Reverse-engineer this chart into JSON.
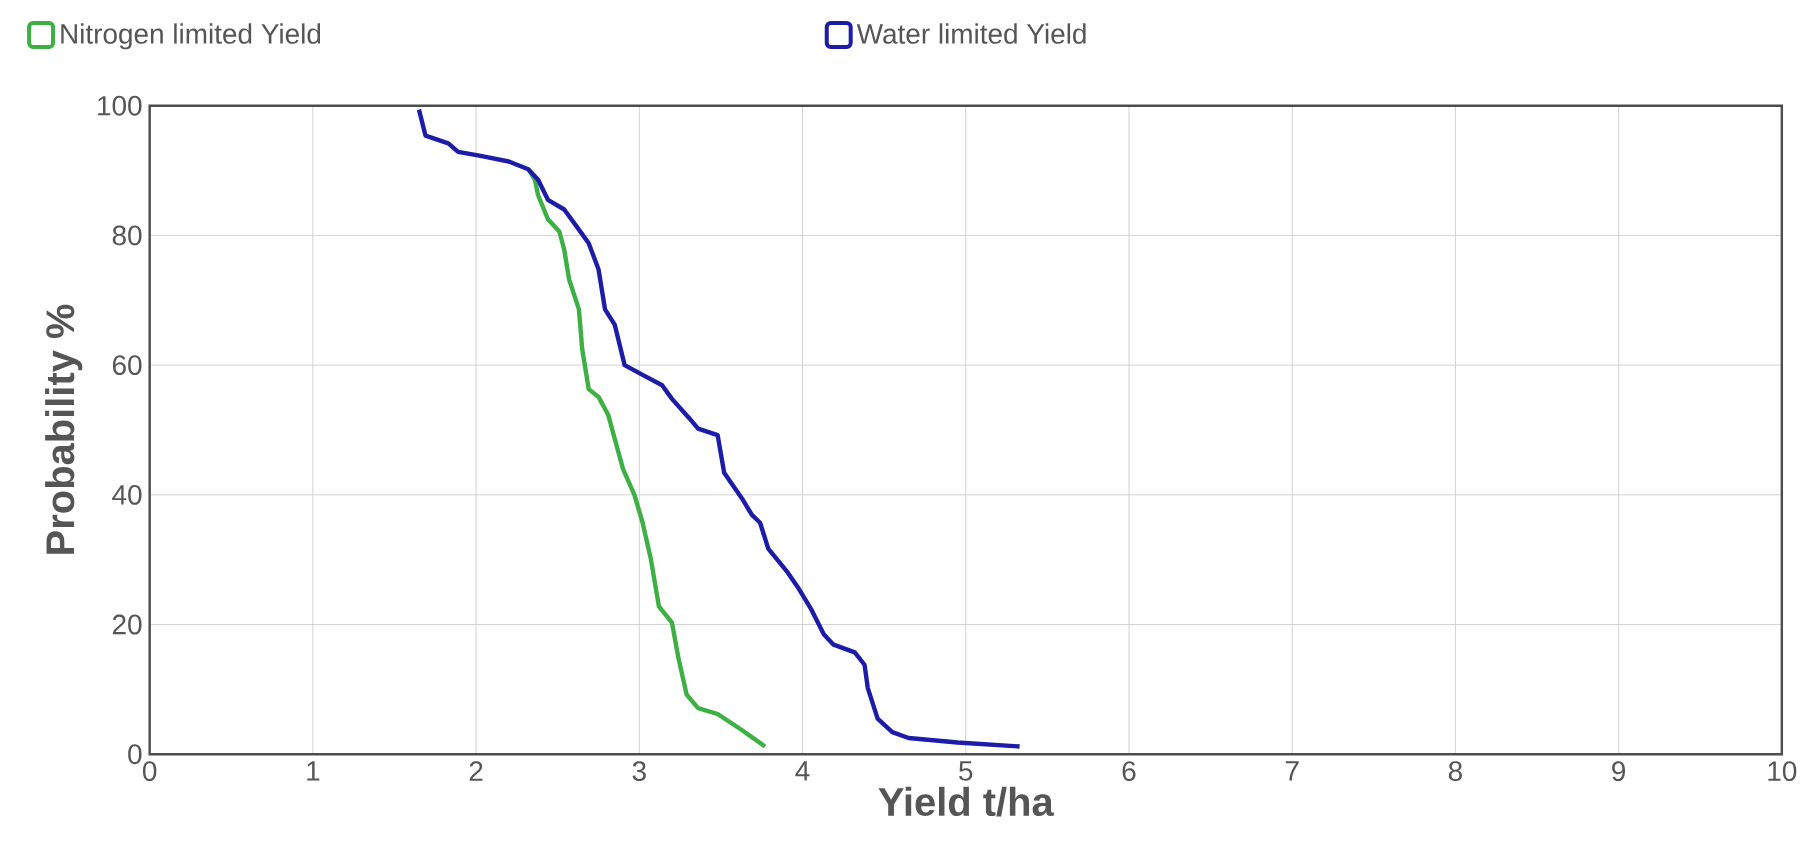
{
  "chart_data": {
    "type": "line",
    "xlabel": "Yield t/ha",
    "ylabel": "Probability %",
    "xlim": [
      0,
      10
    ],
    "xticks": [
      0,
      1,
      2,
      3,
      4,
      5,
      6,
      7,
      8,
      9,
      10
    ],
    "ylim": [
      0,
      100
    ],
    "yticks": [
      0,
      20,
      40,
      60,
      80,
      100
    ],
    "grid": true,
    "legend": "top",
    "series": [
      {
        "name": "Nitrogen limited Yield",
        "color": "#3cb043",
        "x": [
          2.32,
          2.36,
          2.38,
          2.44,
          2.51,
          2.54,
          2.57,
          2.63,
          2.65,
          2.69,
          2.75,
          2.81,
          2.85,
          2.9,
          2.97,
          3.02,
          3.07,
          3.12,
          3.2,
          3.24,
          3.29,
          3.36,
          3.48,
          3.63,
          3.77
        ],
        "values": [
          90.2,
          88.6,
          86.2,
          82.5,
          80.6,
          77.8,
          73.2,
          68.6,
          62.5,
          56.3,
          55.1,
          52.3,
          48.6,
          44,
          40,
          35.7,
          30.2,
          22.8,
          20.3,
          14.8,
          9.2,
          7.1,
          6.2,
          3.7,
          1.2
        ]
      },
      {
        "name": "Water limited Yield",
        "color": "#1c1ca8",
        "x": [
          1.65,
          1.69,
          1.83,
          1.89,
          2.02,
          2.2,
          2.32,
          2.38,
          2.44,
          2.54,
          2.63,
          2.69,
          2.75,
          2.79,
          2.85,
          2.91,
          3.02,
          3.14,
          3.2,
          3.31,
          3.36,
          3.48,
          3.52,
          3.63,
          3.69,
          3.74,
          3.79,
          3.91,
          3.97,
          4.05,
          4.13,
          4.19,
          4.32,
          4.38,
          4.4,
          4.46,
          4.55,
          4.65,
          4.95,
          5.33
        ],
        "values": [
          99.4,
          95.4,
          94.2,
          92.9,
          92.3,
          91.4,
          90.2,
          88.6,
          85.5,
          84,
          80.9,
          78.8,
          74.8,
          68.6,
          66.2,
          60,
          58.5,
          56.9,
          54.8,
          51.7,
          50.2,
          49.2,
          43.4,
          39.4,
          36.9,
          35.7,
          31.7,
          28,
          25.8,
          22.5,
          18.5,
          16.9,
          15.7,
          13.8,
          10.2,
          5.5,
          3.4,
          2.5,
          1.8,
          1.2
        ]
      }
    ]
  }
}
